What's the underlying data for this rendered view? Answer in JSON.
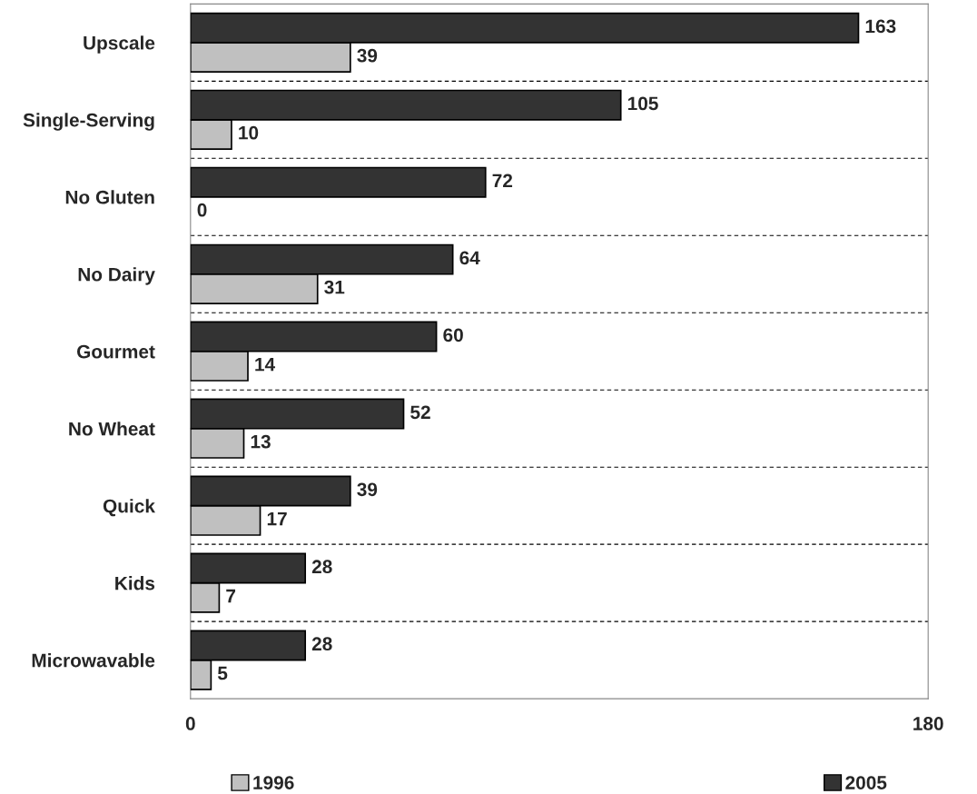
{
  "chart_data": {
    "type": "bar",
    "orientation": "horizontal",
    "categories": [
      "Upscale",
      "Single-Serving",
      "No Gluten",
      "No Dairy",
      "Gourmet",
      "No Wheat",
      "Quick",
      "Kids",
      "Microwavable"
    ],
    "series": [
      {
        "name": "1996",
        "color": "#c0c0c0",
        "values": [
          39,
          10,
          0,
          31,
          14,
          13,
          17,
          7,
          5
        ]
      },
      {
        "name": "2005",
        "color": "#333333",
        "values": [
          163,
          105,
          72,
          64,
          60,
          52,
          39,
          28,
          28
        ]
      }
    ],
    "xlim": [
      0,
      180
    ],
    "xticks": [
      0,
      180
    ],
    "grid": "y",
    "legend": "bottom",
    "data_labels": true
  }
}
